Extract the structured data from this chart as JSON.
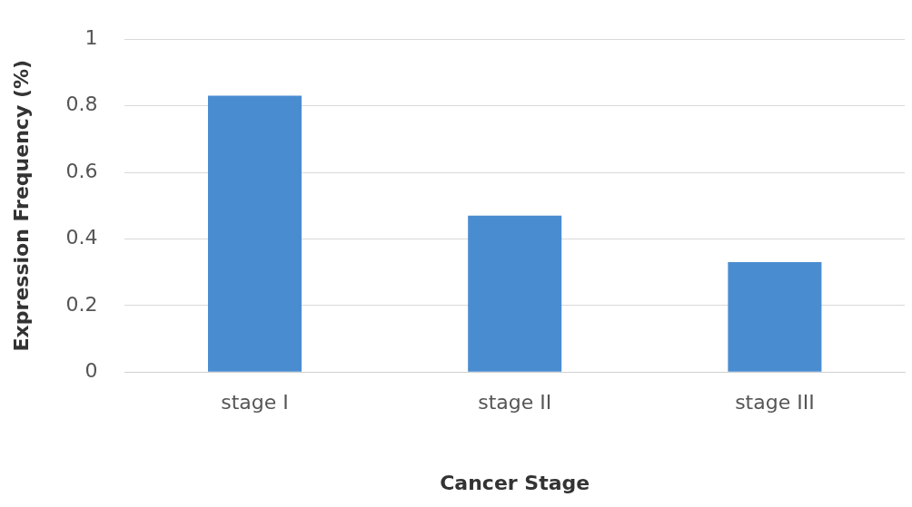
{
  "chart_data": {
    "type": "bar",
    "xlabel": "Cancer Stage",
    "ylabel": "Expression Frequency (%)",
    "categories": [
      "stage I",
      "stage II",
      "stage III"
    ],
    "values": [
      0.83,
      0.47,
      0.33
    ],
    "color": "#4a8cd0",
    "ylim": [
      0,
      1
    ],
    "yticks": [
      0,
      0.2,
      0.4,
      0.6,
      0.8,
      1
    ],
    "grid": "y"
  }
}
